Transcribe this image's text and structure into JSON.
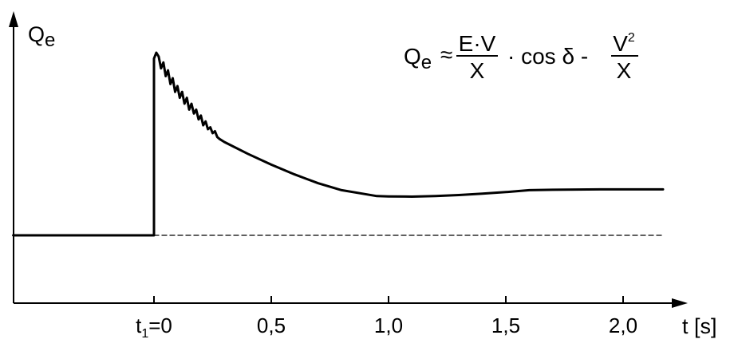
{
  "chart_data": {
    "type": "line",
    "ylabel": {
      "main": "Q",
      "sub": "e"
    },
    "xlabel": "t [s]",
    "xlim": [
      -0.6,
      2.3
    ],
    "x_ticks": [
      {
        "value": 0.0,
        "label": "t",
        "sub": "1",
        "suffix": "=0"
      },
      {
        "value": 0.5,
        "label": "0,5"
      },
      {
        "value": 1.0,
        "label": "1,0"
      },
      {
        "value": 1.5,
        "label": "1,5"
      },
      {
        "value": 2.0,
        "label": "2,0"
      }
    ],
    "equation": {
      "lhs": "Q",
      "lhs_sub": "e",
      "approx": "≈",
      "frac1_num": "E·V",
      "frac1_den": "X",
      "middle": "· cos δ -",
      "frac2_num": "V",
      "frac2_sup": "2",
      "frac2_den": "X"
    },
    "series": [
      {
        "style": "solid",
        "x": [
          -0.6,
          -0.01,
          0.0,
          0.0,
          0.01,
          0.02,
          0.03,
          0.04,
          0.05,
          0.06,
          0.07,
          0.08,
          0.09,
          0.1,
          0.11,
          0.12,
          0.13,
          0.14,
          0.15,
          0.16,
          0.17,
          0.18,
          0.19,
          0.2,
          0.21,
          0.22,
          0.23,
          0.24,
          0.25,
          0.26,
          0.27,
          0.28,
          0.3,
          0.4,
          0.5,
          0.6,
          0.7,
          0.8,
          0.9,
          0.95,
          1.0,
          1.1,
          1.2,
          1.3,
          1.4,
          1.5,
          1.6,
          1.7,
          1.8,
          1.9,
          2.0,
          2.1,
          2.17
        ],
        "y": [
          0.0,
          0.0,
          0.0,
          0.9,
          0.93,
          0.91,
          0.85,
          0.88,
          0.81,
          0.84,
          0.77,
          0.8,
          0.73,
          0.76,
          0.7,
          0.73,
          0.67,
          0.7,
          0.64,
          0.67,
          0.62,
          0.64,
          0.59,
          0.61,
          0.56,
          0.58,
          0.54,
          0.55,
          0.52,
          0.53,
          0.5,
          0.49,
          0.475,
          0.415,
          0.36,
          0.31,
          0.265,
          0.23,
          0.21,
          0.2,
          0.198,
          0.197,
          0.2,
          0.205,
          0.212,
          0.22,
          0.23,
          0.232,
          0.233,
          0.234,
          0.234,
          0.234,
          0.234
        ]
      },
      {
        "style": "dashed",
        "x": [
          0.0,
          2.17
        ],
        "y": [
          0.0,
          0.0
        ]
      }
    ]
  }
}
